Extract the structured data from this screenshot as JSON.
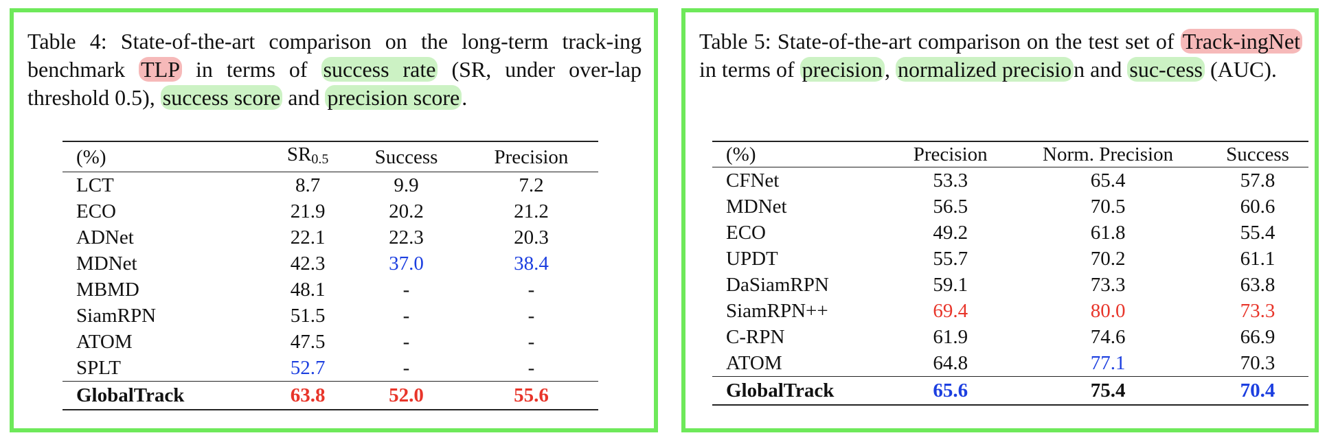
{
  "table4": {
    "caption_parts": [
      "Table 4: State-of-the-art comparison on the long-term track-ing benchmark ",
      "TLP",
      " in terms of ",
      "success rate",
      " (SR, under over-lap threshold 0.5), ",
      "success score",
      " and ",
      "precision score",
      "."
    ],
    "headers": [
      "(%)",
      "SR",
      "0.5",
      "Success",
      "Precision"
    ],
    "rows": [
      {
        "name": "LCT",
        "v": [
          "8.7",
          "9.9",
          "7.2"
        ],
        "s": [
          "",
          "",
          ""
        ]
      },
      {
        "name": "ECO",
        "v": [
          "21.9",
          "20.2",
          "21.2"
        ],
        "s": [
          "",
          "",
          ""
        ]
      },
      {
        "name": "ADNet",
        "v": [
          "22.1",
          "22.3",
          "20.3"
        ],
        "s": [
          "",
          "",
          ""
        ]
      },
      {
        "name": "MDNet",
        "v": [
          "42.3",
          "37.0",
          "38.4"
        ],
        "s": [
          "",
          "second",
          "second"
        ]
      },
      {
        "name": "MBMD",
        "v": [
          "48.1",
          "-",
          "-"
        ],
        "s": [
          "",
          "",
          ""
        ]
      },
      {
        "name": "SiamRPN",
        "v": [
          "51.5",
          "-",
          "-"
        ],
        "s": [
          "",
          "",
          ""
        ]
      },
      {
        "name": "ATOM",
        "v": [
          "47.5",
          "-",
          "-"
        ],
        "s": [
          "",
          "",
          ""
        ]
      },
      {
        "name": "SPLT",
        "v": [
          "52.7",
          "-",
          "-"
        ],
        "s": [
          "second",
          "",
          ""
        ]
      },
      {
        "name": "GlobalTrack",
        "v": [
          "63.8",
          "52.0",
          "55.6"
        ],
        "s": [
          "best",
          "best",
          "best"
        ]
      }
    ]
  },
  "table5": {
    "caption_parts": [
      "Table 5: State-of-the-art comparison on the test set of ",
      "Track-ingNet",
      " in terms of ",
      "precision",
      ", ",
      "normalized precisio",
      "n and ",
      "suc-cess",
      " (AUC)."
    ],
    "headers": [
      "(%)",
      "Precision",
      "Norm. Precision",
      "Success"
    ],
    "rows": [
      {
        "name": "CFNet",
        "v": [
          "53.3",
          "65.4",
          "57.8"
        ],
        "s": [
          "",
          "",
          ""
        ]
      },
      {
        "name": "MDNet",
        "v": [
          "56.5",
          "70.5",
          "60.6"
        ],
        "s": [
          "",
          "",
          ""
        ]
      },
      {
        "name": "ECO",
        "v": [
          "49.2",
          "61.8",
          "55.4"
        ],
        "s": [
          "",
          "",
          ""
        ]
      },
      {
        "name": "UPDT",
        "v": [
          "55.7",
          "70.2",
          "61.1"
        ],
        "s": [
          "",
          "",
          ""
        ]
      },
      {
        "name": "DaSiamRPN",
        "v": [
          "59.1",
          "73.3",
          "63.8"
        ],
        "s": [
          "",
          "",
          ""
        ]
      },
      {
        "name": "SiamRPN++",
        "v": [
          "69.4",
          "80.0",
          "73.3"
        ],
        "s": [
          "best",
          "best",
          "best"
        ]
      },
      {
        "name": "C-RPN",
        "v": [
          "61.9",
          "74.6",
          "66.9"
        ],
        "s": [
          "",
          "",
          ""
        ]
      },
      {
        "name": "ATOM",
        "v": [
          "64.8",
          "77.1",
          "70.3"
        ],
        "s": [
          "",
          "second",
          ""
        ]
      },
      {
        "name": "GlobalTrack",
        "v": [
          "65.6",
          "75.4",
          "70.4"
        ],
        "s": [
          "second",
          "",
          "second"
        ]
      }
    ]
  },
  "colors": {
    "frame": "#6ee95a",
    "best": "#e8352a",
    "second": "#1c3fe0"
  }
}
